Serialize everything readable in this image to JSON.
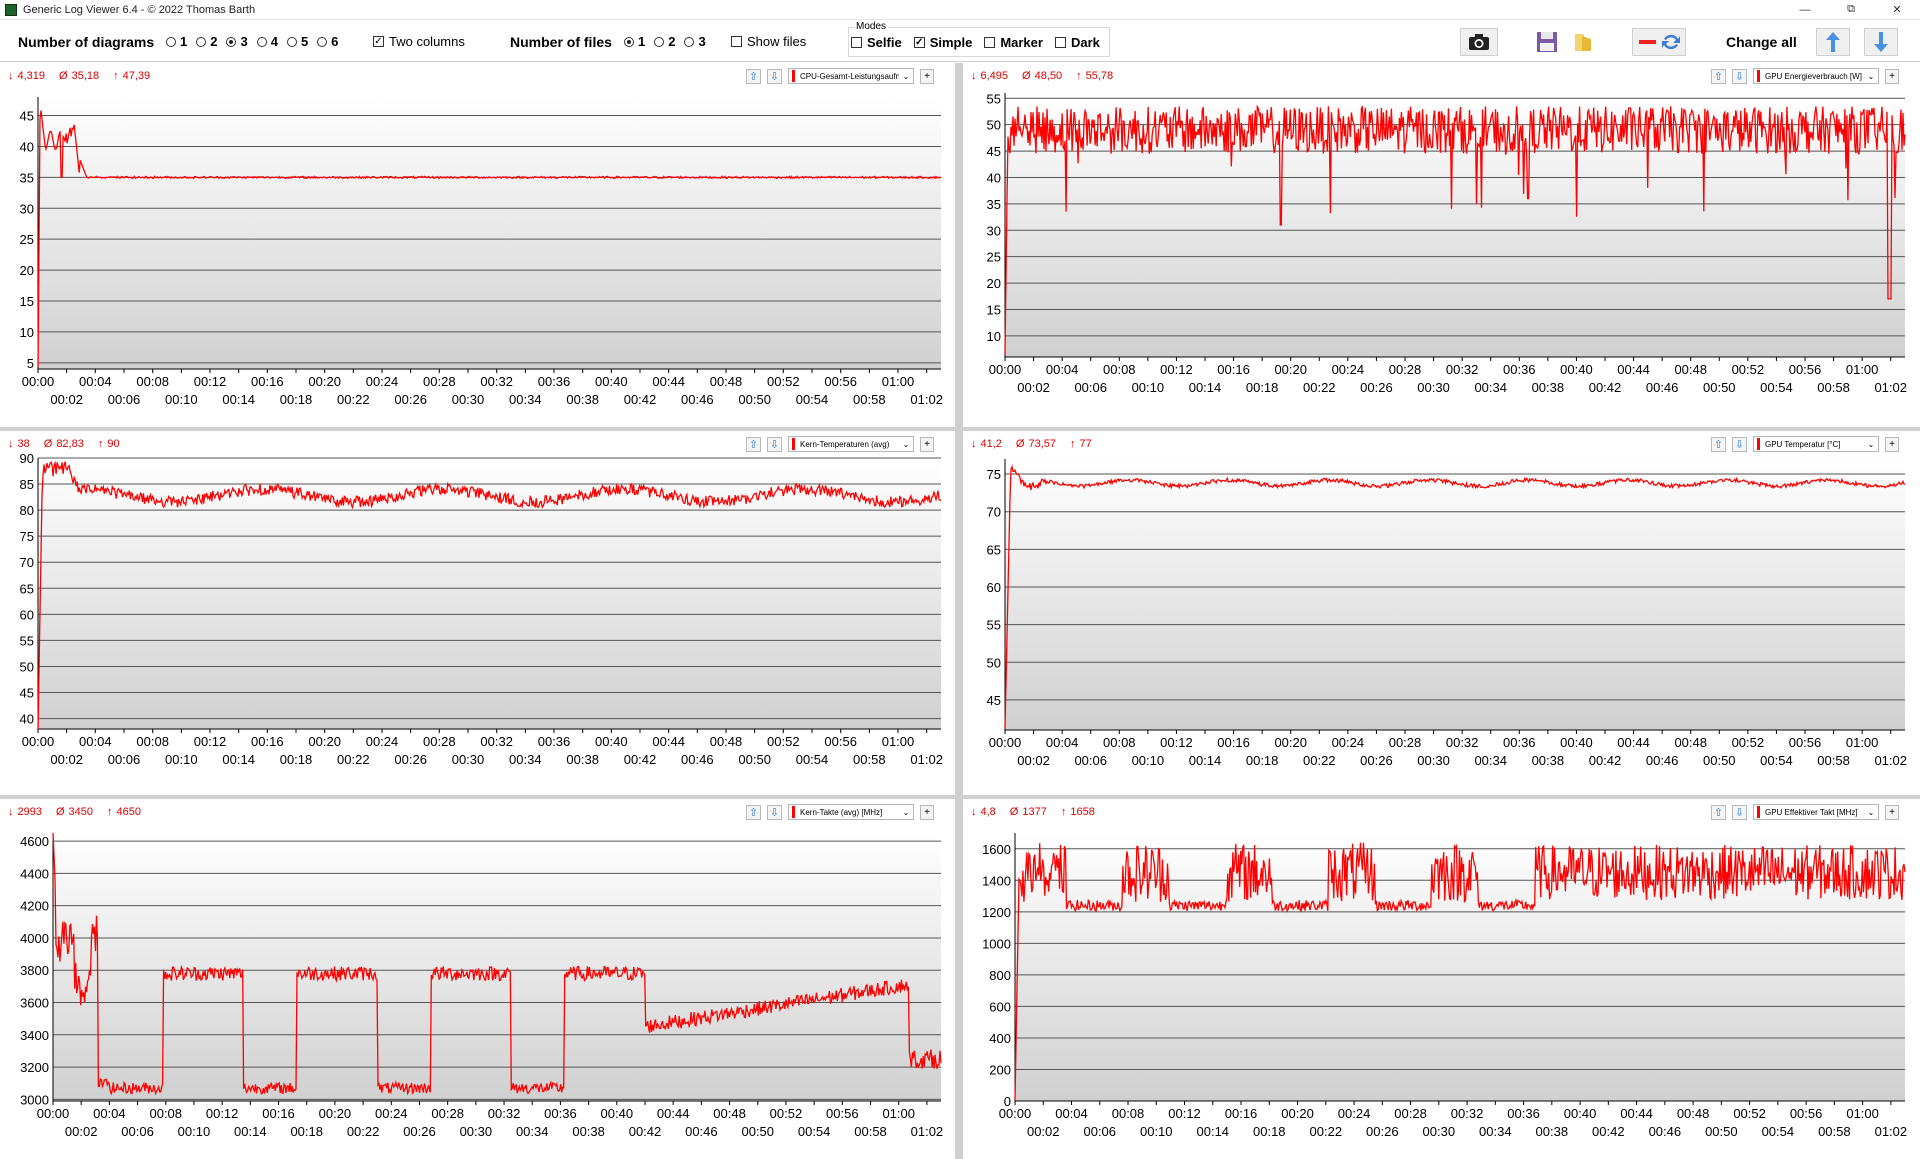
{
  "window": {
    "title": "Generic Log Viewer 6.4 - © 2022 Thomas Barth",
    "minimize": "—",
    "restore": "⧉",
    "close": "✕"
  },
  "toolbar": {
    "num_diagrams_label": "Number of diagrams",
    "diagram_options": [
      "1",
      "2",
      "3",
      "4",
      "5",
      "6"
    ],
    "diagram_selected": "3",
    "two_columns_label": "Two columns",
    "two_columns_checked": true,
    "num_files_label": "Number of files",
    "file_options": [
      "1",
      "2",
      "3"
    ],
    "file_selected": "1",
    "show_files_label": "Show files",
    "show_files_checked": false,
    "modes_title": "Modes",
    "modes": [
      {
        "label": "Selfie",
        "checked": false
      },
      {
        "label": "Simple",
        "checked": true
      },
      {
        "label": "Marker",
        "checked": false
      },
      {
        "label": "Dark",
        "checked": false
      }
    ],
    "camera_icon": "camera-icon",
    "save_icon": "floppy-disk-icon",
    "folder_icon": "folder-icon",
    "swap_icon": "swap-color-icon",
    "change_all_label": "Change all",
    "up_icon": "arrow-up-icon",
    "down_icon": "arrow-down-icon"
  },
  "colors": {
    "series": "#ff0000",
    "stats": "#e00000",
    "plot_top": "#ffffff",
    "plot_bottom": "#d0d0d0",
    "grid": "#555555"
  },
  "x_ticks_top": [
    "00:00",
    "00:04",
    "00:08",
    "00:12",
    "00:16",
    "00:20",
    "00:24",
    "00:28",
    "00:32",
    "00:36",
    "00:40",
    "00:44",
    "00:48",
    "00:52",
    "00:56",
    "01:00"
  ],
  "x_ticks_bottom": [
    "00:02",
    "00:06",
    "00:10",
    "00:14",
    "00:18",
    "00:22",
    "00:26",
    "00:30",
    "00:34",
    "00:38",
    "00:42",
    "00:46",
    "00:50",
    "00:54",
    "00:58",
    "01:02"
  ],
  "panels": [
    {
      "min": "4,319",
      "avg": "35,18",
      "max": "47,39",
      "sensor": "CPU-Gesamt-Leistungsaufnahme",
      "chart_data": {
        "type": "line",
        "x_range_minutes": [
          0,
          63
        ],
        "ylim": [
          4,
          48
        ],
        "yticks": [
          5,
          10,
          15,
          20,
          25,
          30,
          35,
          40,
          45
        ],
        "pattern": "cpu_power",
        "min": 4.319,
        "avg": 35.18,
        "max": 47.39
      }
    },
    {
      "min": "6,495",
      "avg": "48,50",
      "max": "55,78",
      "sensor": "GPU Energieverbrauch [W]",
      "chart_data": {
        "type": "line",
        "x_range_minutes": [
          0,
          63
        ],
        "ylim": [
          6,
          56
        ],
        "yticks": [
          10,
          15,
          20,
          25,
          30,
          35,
          40,
          45,
          50,
          55
        ],
        "pattern": "gpu_power",
        "min": 6.495,
        "avg": 48.5,
        "max": 55.78
      }
    },
    {
      "min": "38",
      "avg": "82,83",
      "max": "90",
      "sensor": "Kern-Temperaturen (avg)",
      "chart_data": {
        "type": "line",
        "x_range_minutes": [
          0,
          63
        ],
        "ylim": [
          38,
          90
        ],
        "yticks": [
          40,
          45,
          50,
          55,
          60,
          65,
          70,
          75,
          80,
          85,
          90
        ],
        "pattern": "cpu_temp",
        "min": 38,
        "avg": 82.83,
        "max": 90
      }
    },
    {
      "min": "41,2",
      "avg": "73,57",
      "max": "77",
      "sensor": "GPU Temperatur [°C]",
      "chart_data": {
        "type": "line",
        "x_range_minutes": [
          0,
          63
        ],
        "ylim": [
          41,
          77
        ],
        "yticks": [
          45,
          50,
          55,
          60,
          65,
          70,
          75
        ],
        "pattern": "gpu_temp",
        "min": 41.2,
        "avg": 73.57,
        "max": 77
      }
    },
    {
      "min": "2993",
      "avg": "3450",
      "max": "4650",
      "sensor": "Kern-Takte (avg) [MHz]",
      "chart_data": {
        "type": "line",
        "x_range_minutes": [
          0,
          63
        ],
        "ylim": [
          2990,
          4650
        ],
        "yticks": [
          3000,
          3200,
          3400,
          3600,
          3800,
          4000,
          4200,
          4400,
          4600
        ],
        "pattern": "cpu_clock",
        "min": 2993,
        "avg": 3450,
        "max": 4650
      }
    },
    {
      "min": "4,8",
      "avg": "1377",
      "max": "1658",
      "sensor": "GPU Effektiver Takt [MHz]",
      "chart_data": {
        "type": "line",
        "x_range_minutes": [
          0,
          63
        ],
        "ylim": [
          0,
          1700
        ],
        "yticks": [
          0,
          200,
          400,
          600,
          800,
          1000,
          1200,
          1400,
          1600
        ],
        "pattern": "gpu_clock",
        "min": 4.8,
        "avg": 1377,
        "max": 1658
      }
    }
  ]
}
